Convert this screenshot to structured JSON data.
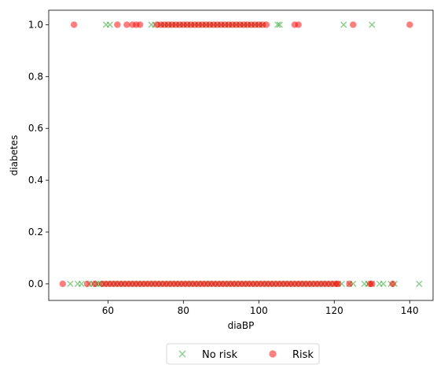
{
  "chart_data": {
    "type": "scatter",
    "xlabel": "diaBP",
    "ylabel": "diabetes",
    "xlim": [
      44.3,
      146.2
    ],
    "ylim": [
      -0.064,
      1.056
    ],
    "xticks": [
      "60",
      "80",
      "100",
      "120",
      "140"
    ],
    "yticks": [
      "0.0",
      "0.2",
      "0.4",
      "0.6",
      "0.8",
      "1.0"
    ],
    "grid": false,
    "legend": {
      "placement": "below-center",
      "columns": 2
    },
    "series": [
      {
        "name": "No risk",
        "marker": "x",
        "color": "#2ca02c",
        "opacity": 0.55,
        "points_y0": [
          50,
          52,
          53,
          55,
          56,
          57,
          57.5,
          58,
          59,
          60,
          61,
          62,
          63,
          64,
          65,
          66,
          67,
          68,
          69,
          70,
          71,
          72,
          73,
          74,
          75,
          76,
          77,
          78,
          79,
          80,
          81,
          82,
          83,
          84,
          85,
          86,
          87,
          88,
          89,
          90,
          91,
          92,
          93,
          94,
          95,
          96,
          97,
          98,
          99,
          100,
          101,
          102,
          103,
          104,
          105,
          106,
          107,
          108,
          109,
          110,
          111,
          112,
          113,
          114,
          115,
          116,
          117,
          118,
          119,
          120,
          121,
          122,
          124,
          125,
          128,
          129,
          130,
          132,
          133,
          135,
          136,
          142.5
        ],
        "points_y1": [
          59.5,
          60.5,
          71.5,
          72.5,
          74,
          75,
          76,
          77,
          78,
          79,
          80,
          81,
          82,
          83,
          84,
          85,
          86,
          87,
          88,
          89,
          90,
          91,
          92,
          93,
          94,
          95,
          96,
          97,
          98,
          99,
          100,
          101,
          105,
          105.5,
          122.5,
          130
        ]
      },
      {
        "name": "Risk",
        "marker": "o",
        "color": "#ff0000",
        "opacity": 0.5,
        "points_y0": [
          48,
          54.5,
          56.5,
          58.5,
          59.5,
          60.5,
          61.5,
          62.5,
          63.5,
          64.5,
          65.5,
          66.5,
          67.5,
          68.5,
          69.5,
          70.5,
          71.5,
          72.5,
          73.5,
          74.5,
          75.5,
          76.5,
          77.5,
          78.5,
          79.5,
          80.5,
          81.5,
          82.5,
          83.5,
          84.5,
          85.5,
          86.5,
          87.5,
          88.5,
          89.5,
          90.5,
          91.5,
          92.5,
          93.5,
          94.5,
          95.5,
          96.5,
          97.5,
          98.5,
          99.5,
          100.5,
          101.5,
          102.5,
          103.5,
          104.5,
          105.5,
          106.5,
          107.5,
          108.5,
          109.5,
          110.5,
          111.5,
          112.5,
          113.5,
          114.5,
          115.5,
          116.5,
          117.5,
          118.5,
          119.5,
          120.5,
          121,
          124,
          129.5,
          130,
          135.5
        ],
        "points_y1": [
          51,
          62.5,
          65,
          66.5,
          67.5,
          68.5,
          73,
          74,
          75,
          76,
          77,
          78,
          79,
          80,
          81,
          82,
          83,
          84,
          85,
          86,
          87,
          88,
          89,
          90,
          91,
          92,
          93,
          94,
          95,
          96,
          97,
          98,
          99,
          100,
          101,
          102,
          109.5,
          110.5,
          125,
          140
        ]
      }
    ]
  }
}
